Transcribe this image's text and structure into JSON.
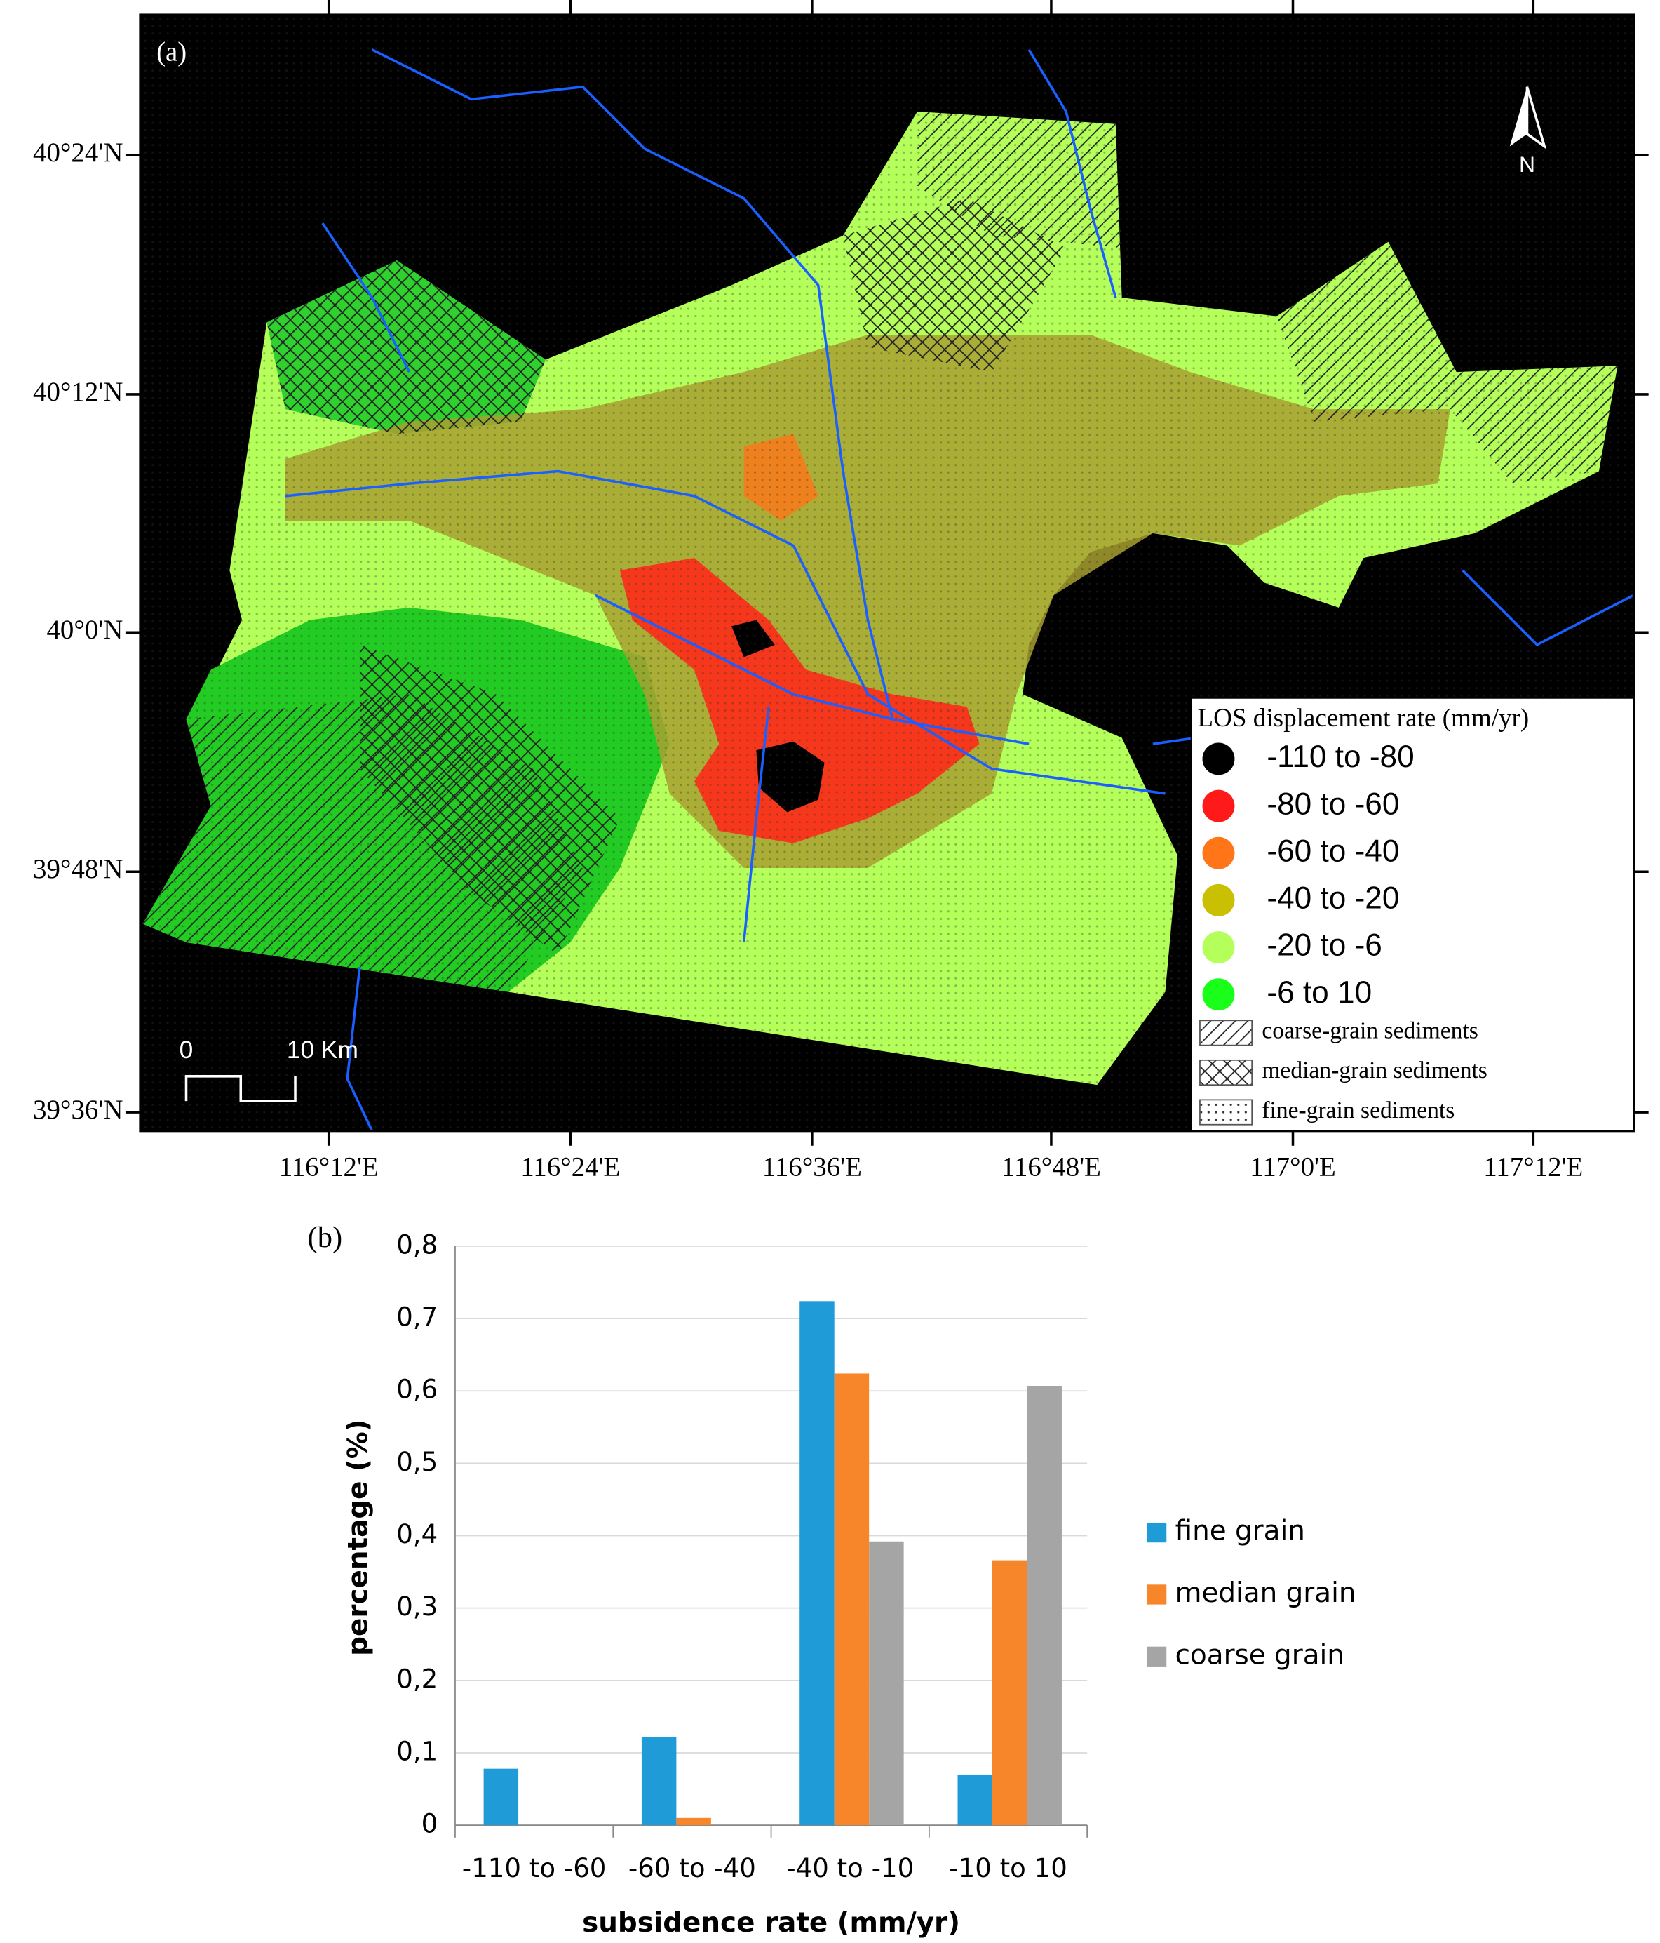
{
  "map": {
    "label": "(a)",
    "lat_labels": [
      "40°24'N",
      "40°12'N",
      "40°0'N",
      "39°48'N",
      "39°36'N"
    ],
    "lon_labels": [
      "116°12'E",
      "116°24'E",
      "116°36'E",
      "116°48'E",
      "117°0'E",
      "117°12'E"
    ],
    "legend": {
      "title": "LOS displacement rate (mm/yr)",
      "items": [
        {
          "label": "-110  to  -80",
          "color": "#000000"
        },
        {
          "label": "-80  to  -60",
          "color": "#ff1a1a"
        },
        {
          "label": "-60  to  -40",
          "color": "#ff7518"
        },
        {
          "label": "-40  to  -20",
          "color": "#c8c000"
        },
        {
          "label": "-20  to  -6",
          "color": "#b4ff5a"
        },
        {
          "label": "-6  to  10",
          "color": "#1aff1a"
        }
      ],
      "patterns": [
        "coarse-grain sediments",
        "median-grain sediments",
        "fine-grain sediments"
      ]
    },
    "scale": {
      "start": "0",
      "end": "10 Km"
    },
    "north": "N"
  },
  "chart_data": {
    "type": "bar",
    "label": "(b)",
    "y_label": "percentage (%)",
    "x_label": "subsidence rate (mm/yr)",
    "categories": [
      "-110 to -60",
      "-60 to -40",
      "-40 to -10",
      "-10 to 10"
    ],
    "series": [
      {
        "name": "fine grain",
        "color": "#1f9bd7",
        "values": [
          0.078,
          0.122,
          0.724,
          0.07
        ]
      },
      {
        "name": "median grain",
        "color": "#f7862a",
        "values": [
          0,
          0.01,
          0.624,
          0.366
        ]
      },
      {
        "name": "coarse grain",
        "color": "#a5a5a5",
        "values": [
          0,
          0,
          0.392,
          0.607
        ]
      }
    ],
    "ylim": [
      0,
      0.8
    ],
    "yticks": [
      0,
      {
        "value": 0.1,
        "label": "0,1"
      },
      {
        "value": 0.2,
        "label": "0,2"
      },
      {
        "value": 0.3,
        "label": "0,3"
      },
      {
        "value": 0.4,
        "label": "0,4"
      },
      {
        "value": 0.5,
        "label": "0,5"
      },
      {
        "value": 0.6,
        "label": "0,6"
      },
      {
        "value": 0.7,
        "label": "0,7"
      },
      {
        "value": 0.8,
        "label": "0,8"
      }
    ],
    "grid": true
  }
}
